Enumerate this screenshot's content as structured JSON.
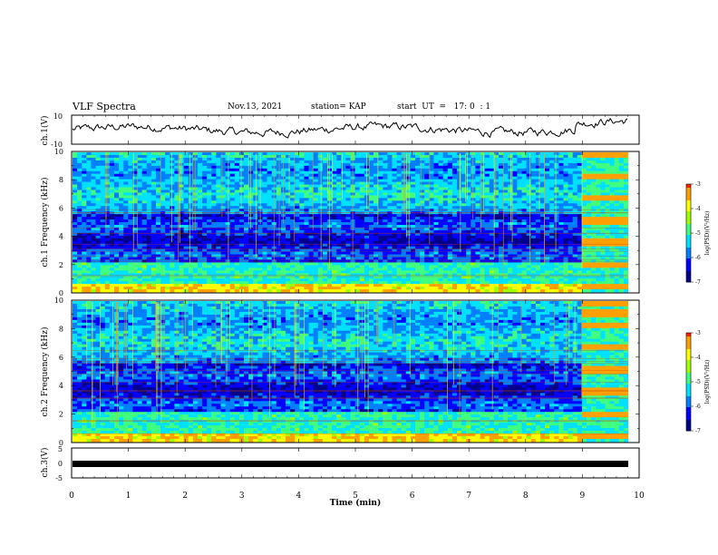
{
  "header": {
    "title": "VLF Spectra",
    "date": "Nov.13, 2021",
    "station": "station= KAP",
    "start": "start  UT  =   17: 0  : 1"
  },
  "chart_data": [
    {
      "type": "line",
      "name": "ch1-waveform",
      "ylabel": "ch.1(V)",
      "ylim": [
        -10,
        10
      ],
      "yticks": [
        "10",
        "-10"
      ],
      "xlim": [
        0,
        10
      ],
      "color": "#000000"
    },
    {
      "type": "heatmap",
      "name": "ch1-spectrogram",
      "ylabel": "ch.1 Frequency (kHz)",
      "ylim": [
        0,
        10
      ],
      "yticks": [
        "0",
        "2",
        "4",
        "6",
        "8",
        "10"
      ],
      "xlim": [
        0,
        10
      ],
      "colorbar": {
        "label": "log(PSD)(V²/Hz)",
        "range": [
          -7,
          -3
        ],
        "ticks": [
          "-3",
          "-4",
          "-5",
          "-6",
          "-7"
        ]
      }
    },
    {
      "type": "heatmap",
      "name": "ch2-spectrogram",
      "ylabel": "ch.2 Frequency (kHz)",
      "ylim": [
        0,
        10
      ],
      "yticks": [
        "0",
        "2",
        "4",
        "6",
        "8",
        "10"
      ],
      "xlim": [
        0,
        10
      ],
      "colorbar": {
        "label": "log(PSD)(V²/Hz)",
        "range": [
          -7,
          -3
        ],
        "ticks": [
          "-3",
          "-4",
          "-5",
          "-6",
          "-7"
        ]
      }
    },
    {
      "type": "line",
      "name": "ch3-waveform",
      "ylabel": "ch.3(V)",
      "ylim": [
        -5,
        5
      ],
      "yticks": [
        "5",
        "0",
        "-5"
      ],
      "xlim": [
        0,
        10
      ],
      "color": "#000000"
    }
  ],
  "xaxis": {
    "label": "Time  (min)",
    "ticks": [
      "0",
      "1",
      "2",
      "3",
      "4",
      "5",
      "6",
      "7",
      "8",
      "9",
      "10"
    ]
  },
  "colors": {
    "colormap": [
      "#00008c",
      "#0000ff",
      "#0080ff",
      "#00e0ff",
      "#40ff80",
      "#a0ff00",
      "#ffff00",
      "#ffa000",
      "#ff2000",
      "#ffffff"
    ]
  }
}
